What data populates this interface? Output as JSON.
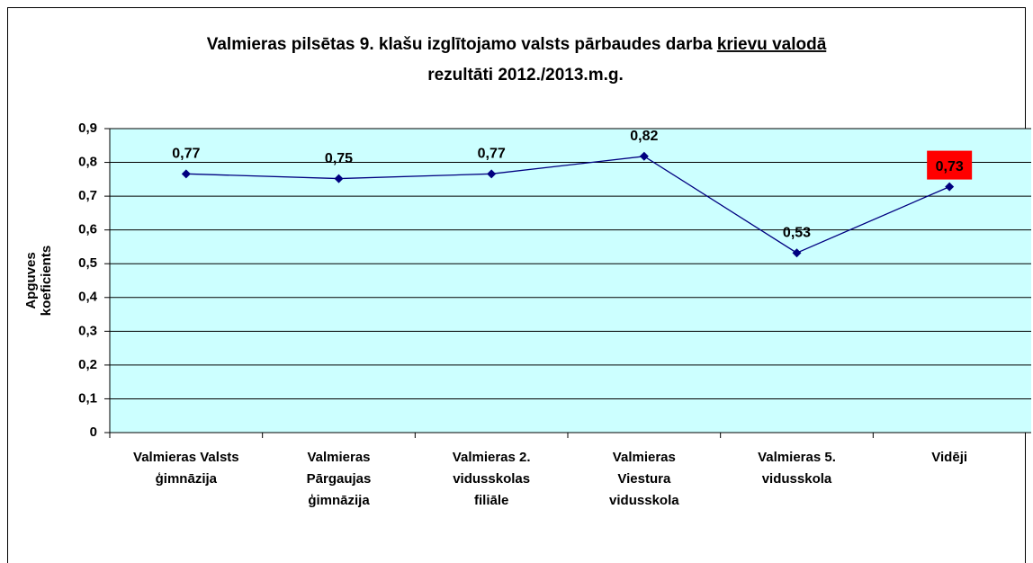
{
  "chart_data": {
    "type": "line",
    "title": "Valmieras pilsētas 9. klašu izglītojamo valsts pārbaudes darba",
    "title_underlined": "krievu valodā",
    "title_line2": "rezultāti 2012./2013.m.g.",
    "ylabel": [
      "Apguves",
      "koeficients"
    ],
    "categories": [
      [
        "Valmieras Valsts",
        "ģimnāzija"
      ],
      [
        "Valmieras",
        "Pārgaujas",
        "ģimnāzija"
      ],
      [
        "Valmieras 2.",
        "vidusskolas",
        "filiāle"
      ],
      [
        "Valmieras",
        "Viestura",
        "vidusskola"
      ],
      [
        "Valmieras 5.",
        "vidusskola"
      ],
      [
        "Vidēji"
      ]
    ],
    "series": [
      {
        "color": "#000080",
        "values": [
          0.766,
          0.752,
          0.766,
          0.818,
          0.532,
          0.728
        ],
        "value_labels": [
          "0,77",
          "0,75",
          "0,77",
          "0,82",
          "0,53",
          "0,73"
        ]
      }
    ],
    "highlight_color": "#ff0000",
    "ylim": [
      0,
      0.9
    ],
    "yticks": [
      0,
      {
        "value": 0.1,
        "label": "0,1"
      },
      {
        "value": 0.2,
        "label": "0,2"
      },
      {
        "value": 0.3,
        "label": "0,3"
      },
      {
        "value": 0.4,
        "label": "0,4"
      },
      {
        "value": 0.5,
        "label": "0,5"
      },
      {
        "value": 0.6,
        "label": "0,6"
      },
      {
        "value": 0.7,
        "label": "0,7"
      },
      {
        "value": 0.8,
        "label": "0,8"
      },
      {
        "value": 0.9,
        "label": "0,9"
      }
    ],
    "grid": true,
    "plot_background": "#ccffff"
  }
}
